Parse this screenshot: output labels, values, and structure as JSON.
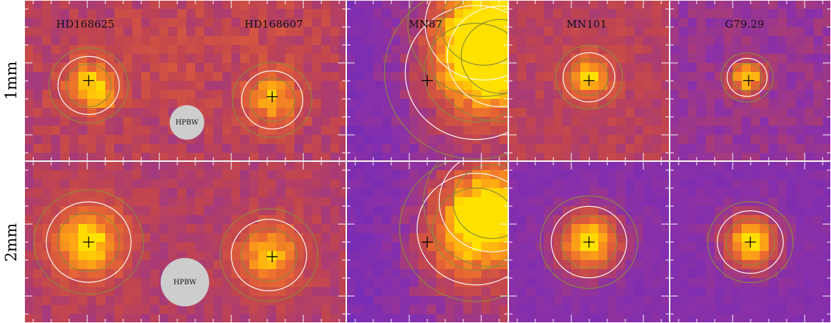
{
  "rows": [
    {
      "label": "1mm"
    },
    {
      "label": "2mm"
    }
  ],
  "panels": [
    {
      "row": 0,
      "col": 0,
      "names": [
        "HD168625",
        "HD168607"
      ],
      "beam_label": "HPBW"
    },
    {
      "row": 0,
      "col": 1,
      "names": [
        "MN87"
      ]
    },
    {
      "row": 0,
      "col": 2,
      "names": [
        "MN101"
      ]
    },
    {
      "row": 0,
      "col": 3,
      "names": [
        "G79.29"
      ]
    },
    {
      "row": 1,
      "col": 0,
      "names": [],
      "beam_label": "HPBW"
    },
    {
      "row": 1,
      "col": 1,
      "names": []
    },
    {
      "row": 1,
      "col": 2,
      "names": []
    },
    {
      "row": 1,
      "col": 3,
      "names": []
    }
  ],
  "colors": {
    "background_low": "#5a28c8",
    "background_mid": "#c04450",
    "source_peak": "#ffe100",
    "contour_white": "#ffffff",
    "contour_olive": "#8a8a3a",
    "beam_fill": "#cdcdcd",
    "tick_color": "#ffffff",
    "marker_color": "#000000"
  }
}
